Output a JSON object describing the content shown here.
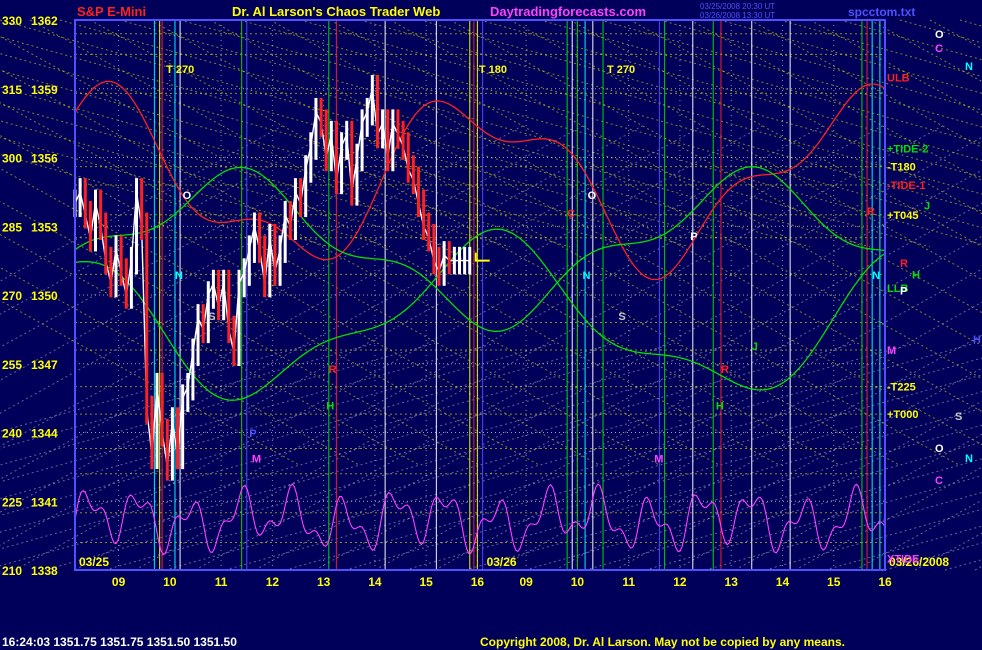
{
  "header": {
    "symbol": "S&P E-Mini",
    "title": "Dr. Al Larson's Chaos Trader Web",
    "site": "Daytradingforecasts.com",
    "stamp1": "03/25/2008 20:30 UT",
    "stamp2": "03/26/2008 13:30 UT",
    "file": "spcctom.txt"
  },
  "footer": {
    "quote": "16:24:03  1351.75  1351.75  1351.50  1351.50",
    "copyright": "Copyright 2008, Dr. Al Larson. May not be copied by any means."
  },
  "colors": {
    "background": "#00005a",
    "grid": "#c8c8c8",
    "yellow": "#ffff00",
    "green": "#00e000",
    "red": "#ff2020",
    "magenta": "#ff40ff",
    "cyan": "#00ffff",
    "white": "#ffffff",
    "blue_border": "#5050ff"
  },
  "chart_data": {
    "type": "line",
    "y_axis": {
      "degrees": [
        330,
        315,
        300,
        285,
        270,
        255,
        240,
        225,
        210
      ],
      "prices": [
        1362,
        1359,
        1356,
        1353,
        1350,
        1347,
        1344,
        1341,
        1338
      ],
      "ylim": [
        1338,
        1362
      ]
    },
    "x_axis": {
      "day1_label": "03/25",
      "day2_label": "03/26",
      "day2_right_label": "03/26/2008",
      "hours": [
        "09",
        "10",
        "11",
        "12",
        "13",
        "14",
        "15",
        "16",
        "09",
        "10",
        "11",
        "12",
        "13",
        "14",
        "15",
        "16"
      ],
      "xlim": [
        0,
        15.8
      ]
    },
    "price_series": {
      "name": "S&P E-Mini",
      "x": [
        0.0,
        0.1,
        0.2,
        0.3,
        0.4,
        0.5,
        0.6,
        0.7,
        0.8,
        0.9,
        1.0,
        1.1,
        1.2,
        1.3,
        1.4,
        1.5,
        1.6,
        1.7,
        1.8,
        1.9,
        2.0,
        2.1,
        2.2,
        2.3,
        2.4,
        2.5,
        2.6,
        2.7,
        2.8,
        2.9,
        3.0,
        3.1,
        3.2,
        3.3,
        3.4,
        3.5,
        3.6,
        3.7,
        3.8,
        3.9,
        4.0,
        4.1,
        4.2,
        4.3,
        4.4,
        4.5,
        4.6,
        4.7,
        4.8,
        4.9,
        5.0,
        5.1,
        5.2,
        5.3,
        5.4,
        5.5,
        5.6,
        5.7,
        5.8,
        5.9,
        6.0,
        6.1,
        6.2,
        6.3,
        6.4,
        6.5,
        6.6,
        6.7,
        6.8,
        6.9,
        7.0,
        7.1,
        7.2,
        7.3,
        7.4,
        7.5,
        7.6,
        7.7
      ],
      "values": [
        1354.0,
        1354.5,
        1353.5,
        1352.5,
        1354.0,
        1353.0,
        1351.5,
        1350.5,
        1352.0,
        1351.0,
        1350.0,
        1351.5,
        1354.5,
        1353.0,
        1345.0,
        1343.0,
        1346.0,
        1344.0,
        1342.5,
        1344.5,
        1343.0,
        1345.5,
        1346.0,
        1347.5,
        1349.0,
        1348.5,
        1350.0,
        1350.5,
        1349.5,
        1350.5,
        1348.5,
        1347.5,
        1350.5,
        1351.0,
        1352.0,
        1353.0,
        1352.0,
        1350.5,
        1352.5,
        1351.0,
        1352.0,
        1353.5,
        1353.0,
        1354.5,
        1354.0,
        1355.5,
        1356.5,
        1358.0,
        1357.5,
        1356.0,
        1357.0,
        1355.0,
        1356.5,
        1357.0,
        1354.5,
        1356.0,
        1357.5,
        1358.0,
        1359.0,
        1357.0,
        1357.5,
        1356.0,
        1357.5,
        1357.0,
        1356.5,
        1355.5,
        1355.0,
        1354.0,
        1353.0,
        1352.5,
        1351.5,
        1351.0,
        1351.75,
        1351.5,
        1351.5,
        1351.5,
        1351.5,
        1351.5
      ]
    },
    "vertical_markers": [
      {
        "label": "T 270",
        "x": 1.7
      },
      {
        "label": "T 180",
        "x": 7.8
      },
      {
        "label": "T 270",
        "x": 10.3
      }
    ],
    "right_labels": [
      {
        "text": "ULB",
        "price": 1359.5,
        "color": "#ff2020"
      },
      {
        "text": "+TIDE-2",
        "price": 1356.4,
        "color": "#00e000"
      },
      {
        "text": "-T180",
        "price": 1355.6,
        "color": "#ffff00"
      },
      {
        "text": "-TIDE-1",
        "price": 1354.8,
        "color": "#ff2020"
      },
      {
        "text": "+T045",
        "price": 1353.5,
        "color": "#ffff00"
      },
      {
        "text": "J",
        "price": 1353.9,
        "color": "#00e000"
      },
      {
        "text": "R",
        "price": 1351.4,
        "color": "#ff2020"
      },
      {
        "text": "H",
        "price": 1350.9,
        "color": "#00e000"
      },
      {
        "text": "LLB",
        "price": 1350.3,
        "color": "#00e000"
      },
      {
        "text": "P",
        "price": 1350.2,
        "color": "#ffffff"
      },
      {
        "text": "M",
        "price": 1347.6,
        "color": "#ff40ff"
      },
      {
        "text": "-T225",
        "price": 1346.0,
        "color": "#ffff00"
      },
      {
        "text": "+T000",
        "price": 1344.8,
        "color": "#ffff00"
      },
      {
        "text": "XTIDE",
        "price": 1338.5,
        "color": "#ff40ff"
      }
    ],
    "side_letters": [
      {
        "text": "O",
        "color": "#ffffff"
      },
      {
        "text": "N",
        "color": "#00ffff"
      },
      {
        "text": "C",
        "color": "#ff40ff"
      },
      {
        "text": "H",
        "color": "#5050ff"
      },
      {
        "text": "S",
        "color": "#c8c8c8"
      },
      {
        "text": "O",
        "color": "#ffffff"
      },
      {
        "text": "N",
        "color": "#00ffff"
      },
      {
        "text": "C",
        "color": "#ff40ff"
      }
    ],
    "in_chart_letters": [
      {
        "text": "O",
        "x": 2.1,
        "price": 1354.2,
        "color": "#ffffff"
      },
      {
        "text": "N",
        "x": 1.95,
        "price": 1350.7,
        "color": "#00ffff"
      },
      {
        "text": "S",
        "x": 2.6,
        "price": 1348.9,
        "color": "#c8c8c8"
      },
      {
        "text": "P",
        "x": 3.4,
        "price": 1343.8,
        "color": "#5050ff"
      },
      {
        "text": "M",
        "x": 3.45,
        "price": 1342.7,
        "color": "#ff40ff"
      },
      {
        "text": "R",
        "x": 4.95,
        "price": 1346.6,
        "color": "#ff2020"
      },
      {
        "text": "H",
        "x": 4.9,
        "price": 1345.0,
        "color": "#00e000"
      },
      {
        "text": "O",
        "x": 10.0,
        "price": 1354.2,
        "color": "#ffffff"
      },
      {
        "text": "C",
        "x": 9.6,
        "price": 1353.4,
        "color": "#ff2020"
      },
      {
        "text": "N",
        "x": 9.9,
        "price": 1350.7,
        "color": "#00ffff"
      },
      {
        "text": "S",
        "x": 10.6,
        "price": 1348.9,
        "color": "#c8c8c8"
      },
      {
        "text": "P",
        "x": 12.0,
        "price": 1352.4,
        "color": "#ffffff"
      },
      {
        "text": "M",
        "x": 11.3,
        "price": 1342.7,
        "color": "#ff40ff"
      },
      {
        "text": "R",
        "x": 12.6,
        "price": 1346.6,
        "color": "#ff2020"
      },
      {
        "text": "H",
        "x": 12.5,
        "price": 1345.0,
        "color": "#00e000"
      },
      {
        "text": "J",
        "x": 13.2,
        "price": 1347.6,
        "color": "#00e000"
      },
      {
        "text": "R",
        "x": 15.45,
        "price": 1353.5,
        "color": "#ff2020"
      },
      {
        "text": "N",
        "x": 15.55,
        "price": 1350.7,
        "color": "#00ffff"
      }
    ]
  }
}
